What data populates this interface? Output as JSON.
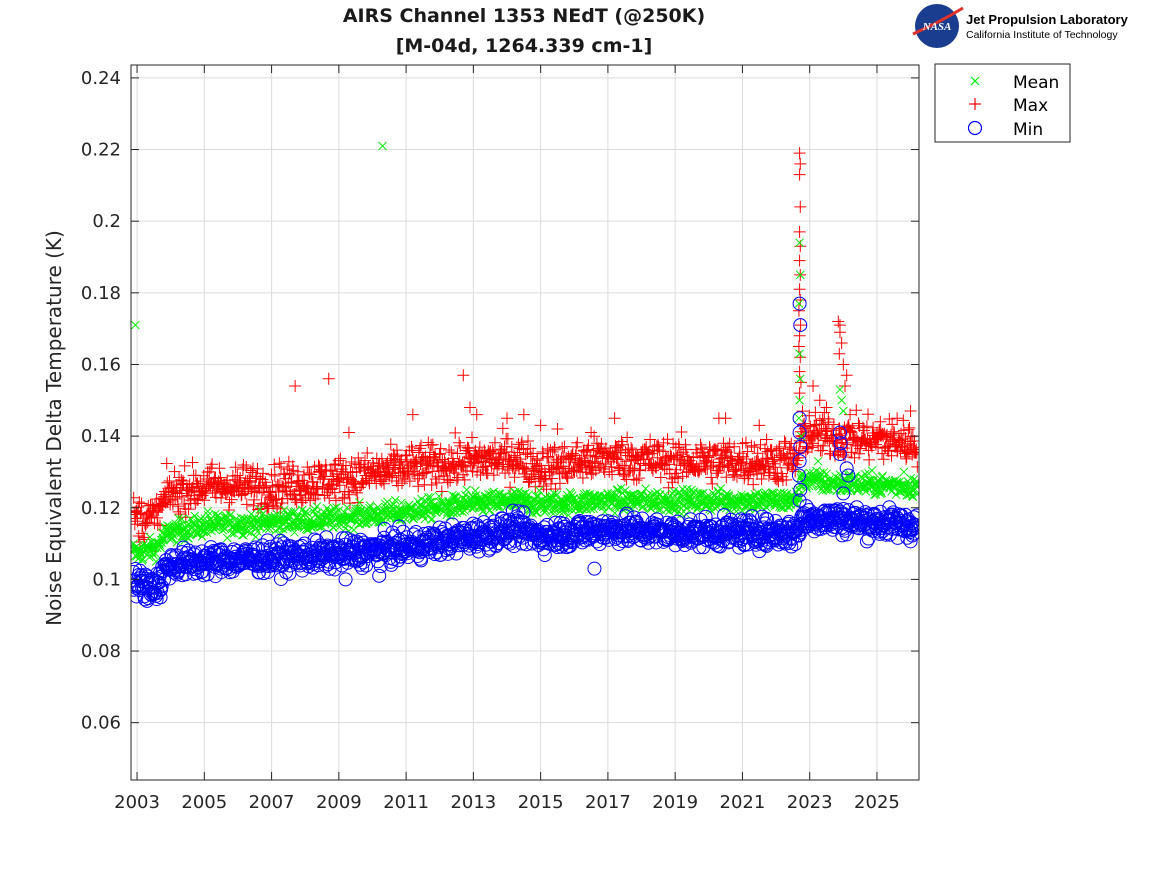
{
  "logo": {
    "agency": "NASA",
    "org": "Jet Propulsion Laboratory",
    "sub": "California Institute of Technology"
  },
  "chart_data": {
    "type": "scatter",
    "title": [
      "AIRS Channel 1353 NEdT (@250K)",
      "[M-04d, 1264.339 cm-1]"
    ],
    "xlabel": "",
    "ylabel": "Noise Equivalent Delta Temperature (K)",
    "xlim": [
      2002.82,
      2026.25
    ],
    "ylim": [
      0.044,
      0.2436
    ],
    "grid": true,
    "legend_position": "outside-top-right",
    "xticks": [
      2003,
      2005,
      2007,
      2009,
      2011,
      2013,
      2015,
      2017,
      2019,
      2021,
      2023,
      2025
    ],
    "xtick_labels": [
      "2003",
      "2005",
      "2007",
      "2009",
      "2011",
      "2013",
      "2015",
      "2017",
      "2019",
      "2021",
      "2023",
      "2025"
    ],
    "yticks": [
      0.06,
      0.08,
      0.1,
      0.12,
      0.14,
      0.16,
      0.18,
      0.2,
      0.22,
      0.24
    ],
    "ytick_labels": [
      "0.06",
      "0.08",
      "0.1",
      "0.12",
      "0.14",
      "0.16",
      "0.18",
      "0.2",
      "0.22",
      "0.24"
    ],
    "series": [
      {
        "name": "Mean",
        "marker": "x",
        "color": "#00ee00",
        "trend": [
          [
            2002.9,
            0.107
          ],
          [
            2003.6,
            0.109
          ],
          [
            2003.9,
            0.113
          ],
          [
            2005.0,
            0.115
          ],
          [
            2007.0,
            0.116
          ],
          [
            2009.0,
            0.117
          ],
          [
            2011.0,
            0.119
          ],
          [
            2013.0,
            0.121
          ],
          [
            2014.3,
            0.122
          ],
          [
            2015.0,
            0.121
          ],
          [
            2017.0,
            0.122
          ],
          [
            2019.0,
            0.122
          ],
          [
            2021.0,
            0.122
          ],
          [
            2022.6,
            0.122
          ],
          [
            2022.8,
            0.128
          ],
          [
            2023.5,
            0.127
          ],
          [
            2026.2,
            0.126
          ]
        ],
        "noise": 0.0015,
        "outliers": [
          [
            2002.95,
            0.171
          ],
          [
            2010.3,
            0.221
          ],
          [
            2002.9,
            0.11
          ],
          [
            2005.1,
            0.119
          ],
          [
            2007.7,
            0.119
          ],
          [
            2012.8,
            0.125
          ],
          [
            2022.7,
            0.194
          ],
          [
            2022.72,
            0.185
          ],
          [
            2022.68,
            0.177
          ],
          [
            2022.7,
            0.163
          ],
          [
            2022.72,
            0.156
          ],
          [
            2022.7,
            0.15
          ],
          [
            2022.68,
            0.145
          ],
          [
            2022.75,
            0.14
          ],
          [
            2023.25,
            0.133
          ],
          [
            2023.9,
            0.153
          ],
          [
            2023.95,
            0.15
          ],
          [
            2024.0,
            0.147
          ],
          [
            2025.8,
            0.13
          ]
        ]
      },
      {
        "name": "Max",
        "marker": "+",
        "color": "#ff0000",
        "trend": [
          [
            2002.9,
            0.117
          ],
          [
            2003.6,
            0.117
          ],
          [
            2003.9,
            0.124
          ],
          [
            2005.0,
            0.126
          ],
          [
            2007.0,
            0.126
          ],
          [
            2009.0,
            0.128
          ],
          [
            2011.0,
            0.131
          ],
          [
            2013.0,
            0.133
          ],
          [
            2014.3,
            0.134
          ],
          [
            2015.0,
            0.131
          ],
          [
            2017.0,
            0.134
          ],
          [
            2019.0,
            0.133
          ],
          [
            2021.0,
            0.133
          ],
          [
            2022.6,
            0.133
          ],
          [
            2022.8,
            0.141
          ],
          [
            2023.5,
            0.14
          ],
          [
            2026.2,
            0.138
          ]
        ],
        "noise": 0.003,
        "outliers": [
          [
            2007.7,
            0.154
          ],
          [
            2008.7,
            0.156
          ],
          [
            2009.3,
            0.141
          ],
          [
            2011.2,
            0.146
          ],
          [
            2012.7,
            0.157
          ],
          [
            2012.9,
            0.148
          ],
          [
            2013.1,
            0.146
          ],
          [
            2014.0,
            0.145
          ],
          [
            2014.5,
            0.146
          ],
          [
            2015.0,
            0.143
          ],
          [
            2015.5,
            0.142
          ],
          [
            2016.5,
            0.141
          ],
          [
            2017.2,
            0.145
          ],
          [
            2020.3,
            0.145
          ],
          [
            2020.5,
            0.145
          ],
          [
            2021.5,
            0.143
          ],
          [
            2022.7,
            0.219
          ],
          [
            2022.72,
            0.216
          ],
          [
            2022.7,
            0.213
          ],
          [
            2022.72,
            0.204
          ],
          [
            2022.7,
            0.197
          ],
          [
            2022.72,
            0.193
          ],
          [
            2022.7,
            0.189
          ],
          [
            2022.72,
            0.185
          ],
          [
            2022.7,
            0.181
          ],
          [
            2022.72,
            0.178
          ],
          [
            2022.68,
            0.175
          ],
          [
            2022.73,
            0.171
          ],
          [
            2022.7,
            0.168
          ],
          [
            2022.68,
            0.165
          ],
          [
            2022.72,
            0.162
          ],
          [
            2022.7,
            0.158
          ],
          [
            2022.74,
            0.155
          ],
          [
            2022.7,
            0.152
          ],
          [
            2023.1,
            0.154
          ],
          [
            2023.3,
            0.15
          ],
          [
            2023.5,
            0.148
          ],
          [
            2023.85,
            0.172
          ],
          [
            2023.9,
            0.169
          ],
          [
            2023.95,
            0.166
          ],
          [
            2023.88,
            0.163
          ],
          [
            2024.0,
            0.16
          ],
          [
            2024.1,
            0.157
          ],
          [
            2023.9,
            0.171
          ],
          [
            2024.05,
            0.154
          ],
          [
            2024.2,
            0.146
          ],
          [
            2025.1,
            0.144
          ],
          [
            2025.6,
            0.145
          ],
          [
            2026.0,
            0.147
          ]
        ]
      },
      {
        "name": "Min",
        "marker": "o",
        "color": "#0000ff",
        "trend": [
          [
            2002.9,
            0.099
          ],
          [
            2003.6,
            0.098
          ],
          [
            2003.9,
            0.104
          ],
          [
            2005.0,
            0.105
          ],
          [
            2007.0,
            0.106
          ],
          [
            2009.0,
            0.107
          ],
          [
            2011.0,
            0.109
          ],
          [
            2013.0,
            0.112
          ],
          [
            2014.3,
            0.114
          ],
          [
            2015.0,
            0.112
          ],
          [
            2017.0,
            0.114
          ],
          [
            2019.0,
            0.113
          ],
          [
            2021.0,
            0.113
          ],
          [
            2022.6,
            0.113
          ],
          [
            2022.8,
            0.117
          ],
          [
            2023.5,
            0.117
          ],
          [
            2026.2,
            0.115
          ]
        ],
        "noise": 0.002,
        "outliers": [
          [
            2009.2,
            0.1
          ],
          [
            2010.2,
            0.101
          ],
          [
            2016.6,
            0.103
          ],
          [
            2003.3,
            0.094
          ],
          [
            2003.7,
            0.095
          ],
          [
            2022.7,
            0.177
          ],
          [
            2022.72,
            0.171
          ],
          [
            2022.7,
            0.145
          ],
          [
            2022.7,
            0.141
          ],
          [
            2022.72,
            0.137
          ],
          [
            2022.7,
            0.133
          ],
          [
            2022.68,
            0.129
          ],
          [
            2022.72,
            0.125
          ],
          [
            2022.7,
            0.122
          ],
          [
            2023.9,
            0.141
          ],
          [
            2023.92,
            0.138
          ],
          [
            2023.9,
            0.135
          ],
          [
            2024.1,
            0.131
          ],
          [
            2024.15,
            0.129
          ],
          [
            2024.0,
            0.124
          ]
        ]
      }
    ]
  }
}
